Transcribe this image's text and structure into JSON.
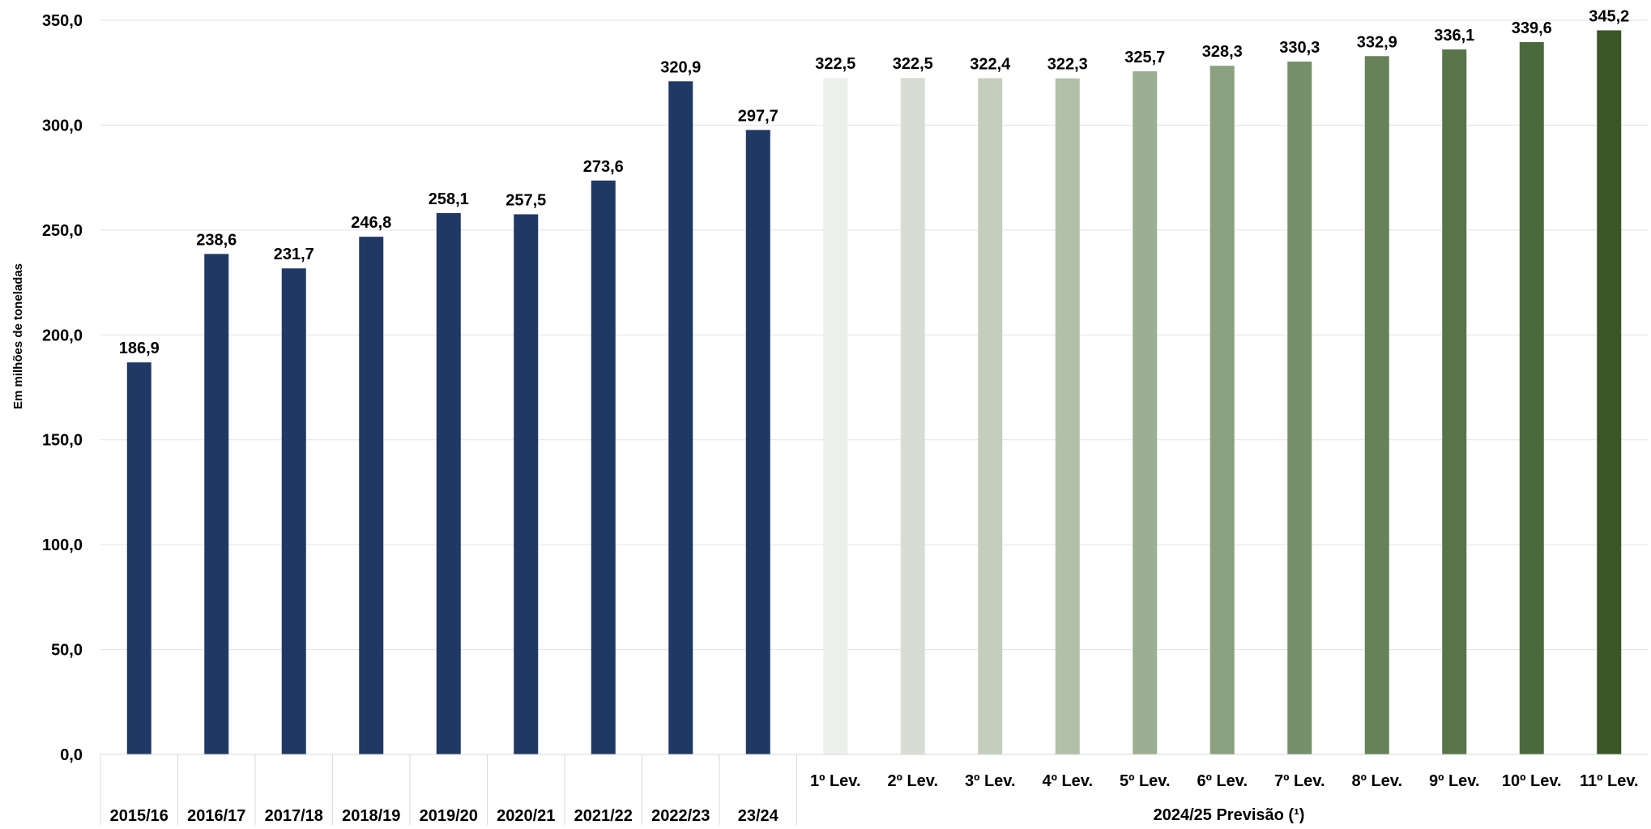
{
  "chart_data": {
    "type": "bar",
    "title_fragment": "",
    "ylabel": "Em milhões de toneladas",
    "ylim": [
      0,
      350
    ],
    "yticks": [
      "0,0",
      "50,0",
      "100,0",
      "150,0",
      "200,0",
      "250,0",
      "300,0",
      "350,0"
    ],
    "ytick_values": [
      0,
      50,
      100,
      150,
      200,
      250,
      300,
      350
    ],
    "grid": true,
    "categories": [
      "2015/16",
      "2016/17",
      "2017/18",
      "2018/19",
      "2019/20",
      "2020/21",
      "2021/22",
      "2022/23",
      "23/24",
      "1º Lev.",
      "2º Lev.",
      "3º Lev.",
      "4º Lev.",
      "5º Lev.",
      "6º Lev.",
      "7º Lev.",
      "8º Lev.",
      "9º Lev.",
      "10º Lev.",
      "11º Lev."
    ],
    "values": [
      186.9,
      238.6,
      231.7,
      246.8,
      258.1,
      257.5,
      273.6,
      320.9,
      297.7,
      322.5,
      322.5,
      322.4,
      322.3,
      325.7,
      328.3,
      330.3,
      332.9,
      336.1,
      339.6,
      345.2
    ],
    "value_labels": [
      "186,9",
      "238,6",
      "231,7",
      "246,8",
      "258,1",
      "257,5",
      "273,6",
      "320,9",
      "297,7",
      "322,5",
      "322,5",
      "322,4",
      "322,3",
      "325,7",
      "328,3",
      "330,3",
      "332,9",
      "336,1",
      "339,6",
      "345,2"
    ],
    "bar_colors": [
      "#203864",
      "#203864",
      "#203864",
      "#203864",
      "#203864",
      "#203864",
      "#203864",
      "#203864",
      "#203864",
      "#edf0ea",
      "#d8ddd4",
      "#c5cebd",
      "#b2bfa9",
      "#9caf92",
      "#8aa07f",
      "#76906b",
      "#668258",
      "#587549",
      "#4b6a3c",
      "#3b5626"
    ],
    "group_label": "2024/25 Previsão (¹)"
  }
}
